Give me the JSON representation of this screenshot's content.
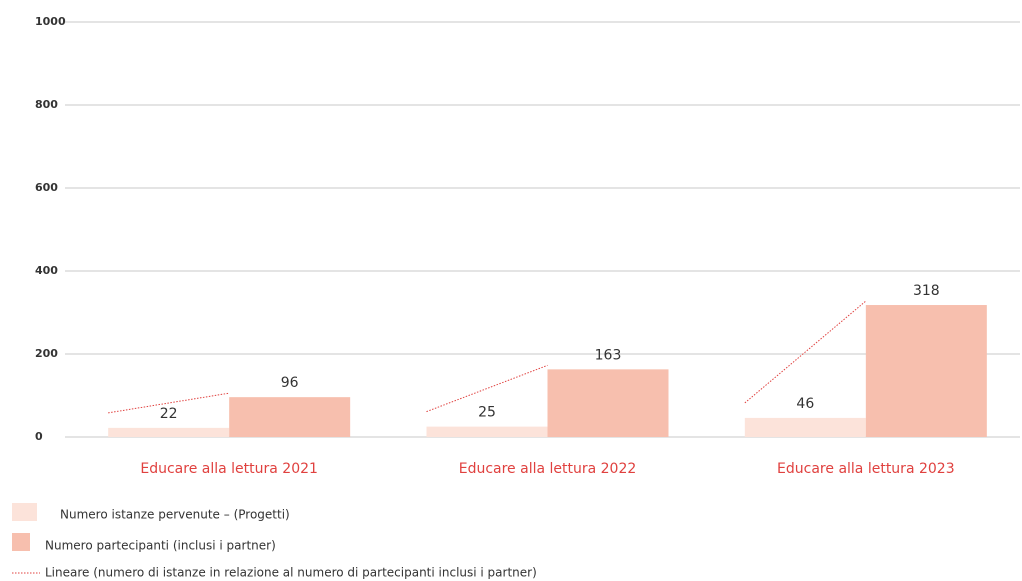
{
  "chart_data": {
    "type": "bar",
    "categories": [
      "Educare alla lettura 2021",
      "Educare alla lettura 2022",
      "Educare alla lettura 2023"
    ],
    "series": [
      {
        "name": "Numero istanze pervenute – (Progetti)",
        "color": "#fce3da",
        "values": [
          22,
          25,
          46
        ]
      },
      {
        "name": "Numero partecipanti (inclusi i partner)",
        "color": "#f7bfae",
        "values": [
          96,
          163,
          318
        ]
      }
    ],
    "trendline": {
      "name": "Lineare (numero di istanze in relazione al numero di partecipanti inclusi i partner)",
      "color": "#e0413f"
    },
    "ylim": [
      0,
      1000
    ],
    "yticks": [
      0,
      200,
      400,
      600,
      800,
      1000
    ],
    "grid": true,
    "category_color": "#e0413f"
  }
}
